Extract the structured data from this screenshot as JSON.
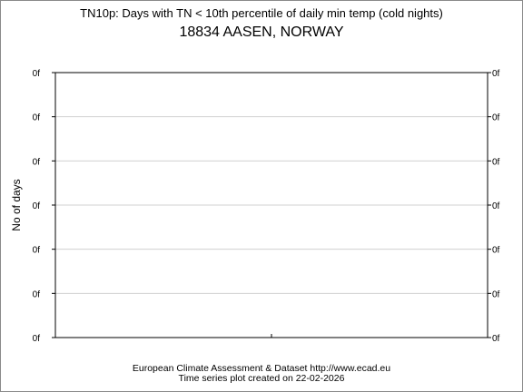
{
  "figure": {
    "title": "TN10p: Days with TN < 10th percentile of daily min temp (cold nights)",
    "subtitle": "18834 AASEN, NORWAY",
    "footer_line1": "European Climate Assessment & Dataset  http://www.ecad.eu",
    "footer_line2": "Time series plot created on 22-02-2026"
  },
  "chart_data": {
    "type": "line",
    "title": "TN10p: Days with TN < 10th percentile of daily min temp (cold nights)",
    "subtitle": "18834 AASEN, NORWAY",
    "xlabel": "",
    "ylabel": "No of days",
    "y_tick_labels": [
      "0f",
      "0f",
      "0f",
      "0f",
      "0f",
      "0f",
      "0f"
    ],
    "y_tick_labels_right": [
      "0f",
      "0f",
      "0f",
      "0f",
      "0f",
      "0f",
      "0f"
    ],
    "series": [],
    "grid": true,
    "colors": {
      "grid": "#d0d0d0",
      "axis": "#000000",
      "frame": "#8a8a8a"
    }
  }
}
